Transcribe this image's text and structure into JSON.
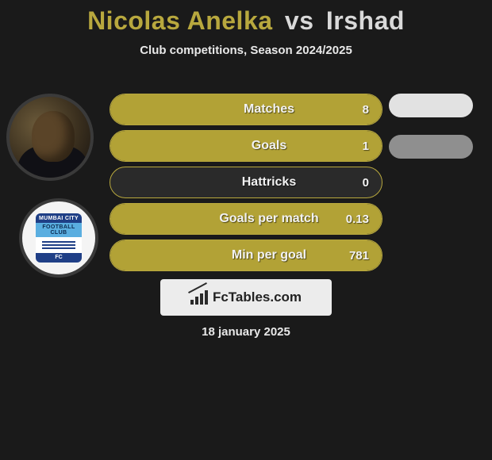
{
  "title": {
    "player1": "Nicolas Anelka",
    "vs": "vs",
    "player2": "Irshad",
    "player1_color": "#b8a83e",
    "vs_color": "#d9d9d9",
    "player2_color": "#d9d9d9",
    "fontsize": 32
  },
  "subtitle": "Club competitions, Season 2024/2025",
  "avatars": {
    "player1_alt": "Nicolas Anelka",
    "club_name_top": "MUMBAI CITY",
    "club_name_mid": "FOOTBALL CLUB",
    "club_name_bot": "FC"
  },
  "chart": {
    "type": "bar",
    "bar_color": "#b2a236",
    "bar_border_color": "#b8a83e",
    "track_color": "#2a2a2a",
    "text_color": "#f2f2f2",
    "label_fontsize": 16,
    "value_fontsize": 15,
    "rows": [
      {
        "label": "Matches",
        "value": "8",
        "fill_pct": 100
      },
      {
        "label": "Goals",
        "value": "1",
        "fill_pct": 100
      },
      {
        "label": "Hattricks",
        "value": "0",
        "fill_pct": 0
      },
      {
        "label": "Goals per match",
        "value": "0.13",
        "fill_pct": 100
      },
      {
        "label": "Min per goal",
        "value": "781",
        "fill_pct": 100
      }
    ]
  },
  "pills": {
    "items": [
      {
        "color": "#e2e2e2"
      },
      {
        "color": "#8f8f8f"
      }
    ]
  },
  "footer_logo": {
    "text": "FcTables.com",
    "background": "#ececec",
    "text_color": "#222222"
  },
  "date": "18 january 2025",
  "colors": {
    "page_background": "#1a1a1a",
    "subtitle_color": "#e8e8e8",
    "date_color": "#e8e8e8"
  }
}
